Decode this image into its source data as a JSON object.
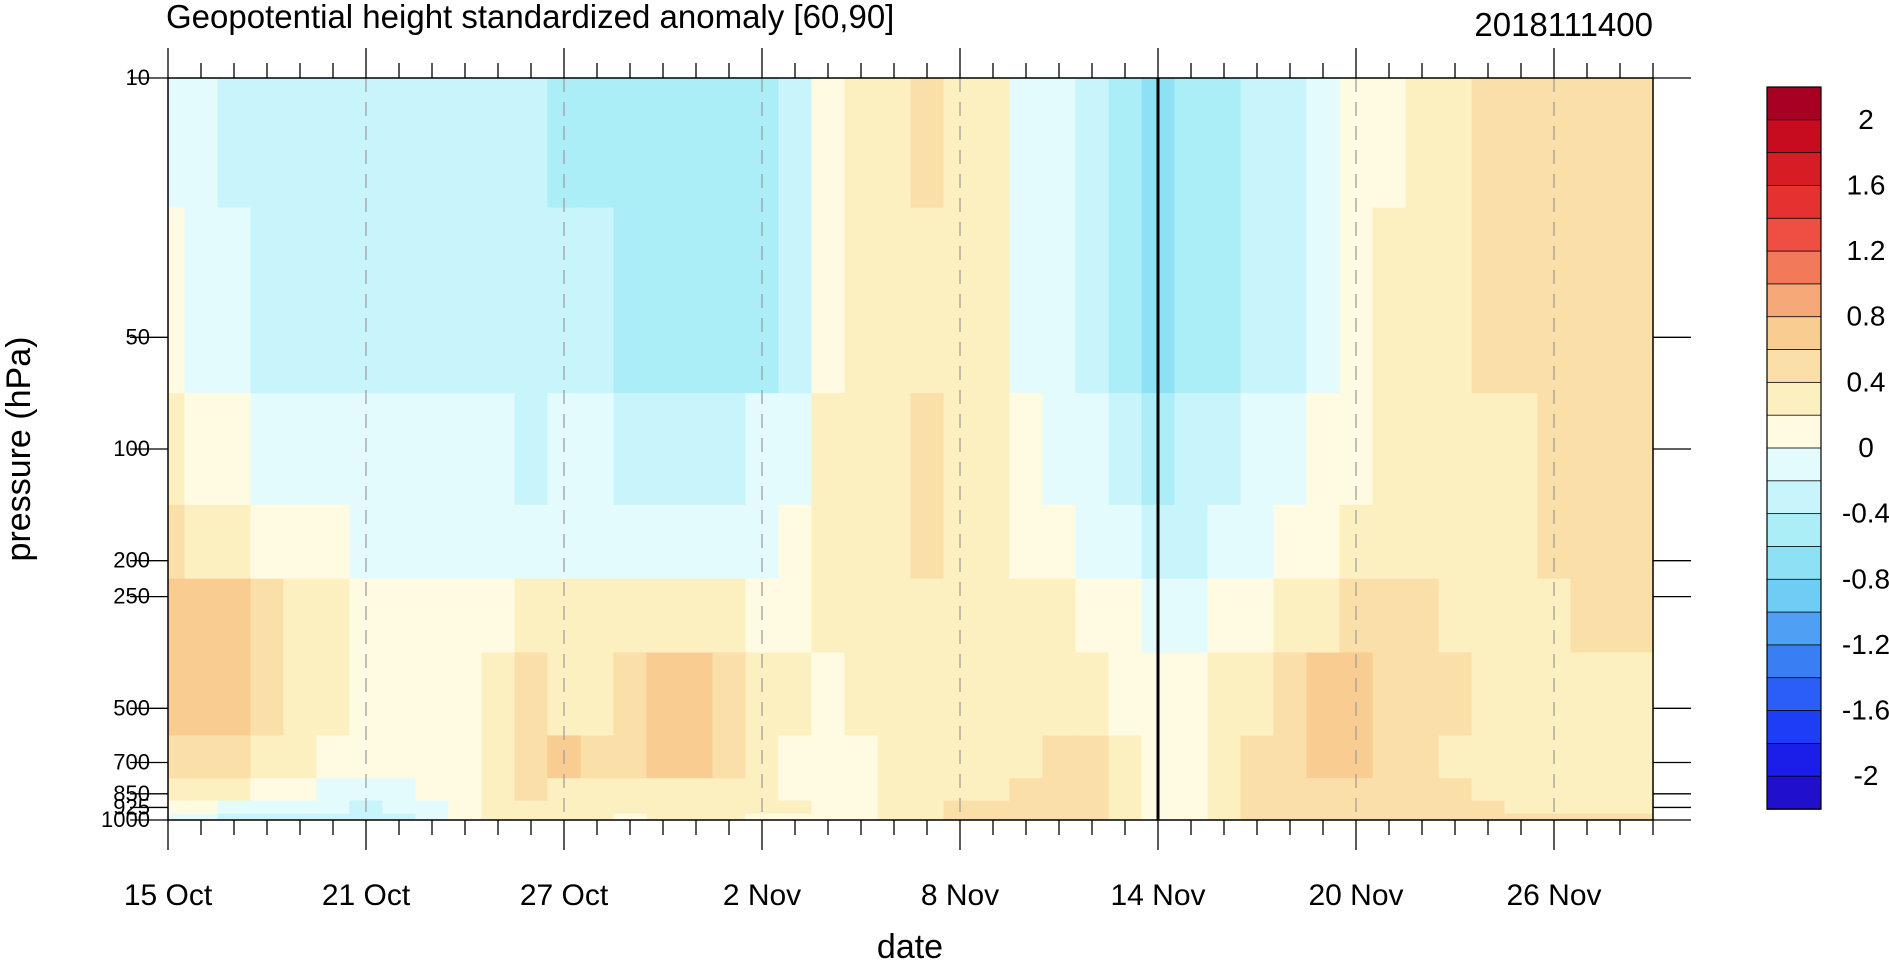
{
  "chart_data": {
    "type": "heatmap",
    "title": "Geopotential height standardized anomaly [60,90]",
    "date_label": "2018111400",
    "xlabel": "date",
    "ylabel": "pressure (hPa)",
    "x_ticks": [
      "15 Oct",
      "21 Oct",
      "27 Oct",
      "2 Nov",
      "8 Nov",
      "14 Nov",
      "20 Nov",
      "26 Nov"
    ],
    "x_range_days": [
      0,
      45
    ],
    "marked_date_day": 30,
    "y_ticks": [
      10,
      50,
      100,
      200,
      250,
      500,
      700,
      850,
      925,
      1000
    ],
    "y_tick_labels": [
      "10",
      "50",
      "100",
      "200",
      "250",
      "500",
      "700",
      "850",
      "925",
      "1000"
    ],
    "colorbar_levels": [
      -2.2,
      -2,
      -1.8,
      -1.6,
      -1.4,
      -1.2,
      -1,
      -0.8,
      -0.6,
      -0.4,
      -0.2,
      0,
      0.2,
      0.4,
      0.6,
      0.8,
      1,
      1.2,
      1.4,
      1.6,
      1.8,
      2,
      2.2
    ],
    "colorbar_colors": [
      "#2010cc",
      "#1a1ee8",
      "#1e3ef5",
      "#2b5ef6",
      "#3a7ef4",
      "#4fa0f4",
      "#6fccf5",
      "#8ee1f5",
      "#aceef8",
      "#c8f5fb",
      "#e4fbfd",
      "#fffbe2",
      "#fcefc0",
      "#fbdfa8",
      "#f9cd92",
      "#f6a878",
      "#f27a5a",
      "#ef4f42",
      "#e5312f",
      "#d81c25",
      "#c80c20",
      "#a80022"
    ],
    "colorbar_labels": [
      "2",
      "1.6",
      "1.2",
      "0.8",
      "0.4",
      "0",
      "-0.4",
      "-0.8",
      "-1.2",
      "-1.6",
      "-2"
    ],
    "grid_values": [
      [
        -0.2,
        -0.2,
        -0.3,
        -0.3,
        -0.3,
        -0.3,
        -0.3,
        -0.3,
        -0.4,
        -0.4,
        -0.4,
        -0.4,
        -0.5,
        -0.5,
        -0.6,
        -0.6,
        -0.6,
        -0.6,
        -0.5,
        -0.4,
        0.1,
        0.2,
        0.3,
        0.4,
        0.3,
        0.2,
        -0.1,
        -0.2,
        -0.3,
        -0.5,
        -0.7,
        -0.6,
        -0.5,
        -0.4,
        -0.3,
        -0.2,
        0.0,
        0.1,
        0.2,
        0.3,
        0.4,
        0.4,
        0.5,
        0.5,
        0.5,
        0.5
      ],
      [
        0.0,
        -0.1,
        -0.2,
        -0.3,
        -0.3,
        -0.3,
        -0.3,
        -0.4,
        -0.4,
        -0.3,
        -0.3,
        -0.4,
        -0.4,
        -0.4,
        -0.5,
        -0.6,
        -0.6,
        -0.5,
        -0.5,
        -0.3,
        0.1,
        0.2,
        0.3,
        0.3,
        0.3,
        0.2,
        -0.1,
        -0.2,
        -0.4,
        -0.5,
        -0.7,
        -0.6,
        -0.5,
        -0.4,
        -0.3,
        -0.1,
        0.1,
        0.2,
        0.3,
        0.3,
        0.4,
        0.4,
        0.4,
        0.5,
        0.5,
        0.5
      ],
      [
        0.2,
        0.1,
        0.0,
        -0.1,
        -0.1,
        -0.2,
        -0.2,
        -0.2,
        -0.2,
        -0.2,
        -0.2,
        -0.3,
        -0.2,
        -0.2,
        -0.3,
        -0.3,
        -0.3,
        -0.3,
        -0.2,
        -0.1,
        0.2,
        0.3,
        0.3,
        0.4,
        0.3,
        0.2,
        0.0,
        -0.1,
        -0.2,
        -0.4,
        -0.5,
        -0.4,
        -0.3,
        -0.2,
        -0.1,
        0.0,
        0.1,
        0.2,
        0.3,
        0.3,
        0.3,
        0.3,
        0.4,
        0.5,
        0.5,
        0.5
      ],
      [
        0.4,
        0.3,
        0.2,
        0.1,
        0.0,
        0.0,
        -0.1,
        -0.1,
        -0.1,
        -0.1,
        -0.1,
        -0.1,
        -0.1,
        -0.1,
        -0.1,
        -0.1,
        -0.1,
        -0.1,
        -0.1,
        0.0,
        0.2,
        0.3,
        0.3,
        0.4,
        0.3,
        0.2,
        0.1,
        0.0,
        -0.1,
        -0.2,
        -0.3,
        -0.3,
        -0.2,
        -0.1,
        0.0,
        0.1,
        0.2,
        0.2,
        0.3,
        0.3,
        0.3,
        0.3,
        0.4,
        0.4,
        0.5,
        0.5
      ],
      [
        0.7,
        0.6,
        0.6,
        0.5,
        0.3,
        0.2,
        0.1,
        0.1,
        0.1,
        0.1,
        0.1,
        0.2,
        0.3,
        0.3,
        0.3,
        0.3,
        0.3,
        0.2,
        0.1,
        0.1,
        0.2,
        0.3,
        0.3,
        0.3,
        0.3,
        0.3,
        0.2,
        0.2,
        0.1,
        0.0,
        -0.1,
        -0.1,
        0.0,
        0.1,
        0.2,
        0.3,
        0.4,
        0.4,
        0.4,
        0.3,
        0.3,
        0.3,
        0.3,
        0.4,
        0.4,
        0.5
      ],
      [
        0.7,
        0.7,
        0.6,
        0.5,
        0.3,
        0.2,
        0.1,
        0.1,
        0.1,
        0.1,
        0.3,
        0.4,
        0.3,
        0.3,
        0.4,
        0.6,
        0.6,
        0.4,
        0.3,
        0.2,
        0.1,
        0.2,
        0.3,
        0.3,
        0.3,
        0.3,
        0.3,
        0.2,
        0.2,
        0.1,
        0.0,
        0.0,
        0.2,
        0.3,
        0.5,
        0.6,
        0.6,
        0.5,
        0.4,
        0.4,
        0.3,
        0.3,
        0.3,
        0.3,
        0.3,
        0.3
      ],
      [
        0.5,
        0.5,
        0.5,
        0.3,
        0.2,
        0.1,
        0.1,
        0.1,
        0.1,
        0.1,
        0.3,
        0.4,
        0.6,
        0.4,
        0.4,
        0.6,
        0.6,
        0.4,
        0.3,
        0.1,
        0.1,
        0.1,
        0.2,
        0.3,
        0.3,
        0.3,
        0.3,
        0.4,
        0.4,
        0.2,
        0.0,
        0.1,
        0.3,
        0.4,
        0.5,
        0.6,
        0.6,
        0.5,
        0.4,
        0.3,
        0.3,
        0.3,
        0.3,
        0.3,
        0.3,
        0.3
      ],
      [
        0.3,
        0.3,
        0.2,
        0.1,
        0.0,
        -0.1,
        -0.2,
        -0.1,
        0.0,
        0.1,
        0.3,
        0.4,
        0.3,
        0.3,
        0.3,
        0.3,
        0.3,
        0.3,
        0.3,
        0.1,
        0.1,
        0.1,
        0.2,
        0.3,
        0.3,
        0.3,
        0.4,
        0.5,
        0.5,
        0.3,
        0.0,
        0.1,
        0.3,
        0.4,
        0.5,
        0.5,
        0.5,
        0.5,
        0.4,
        0.4,
        0.3,
        0.3,
        0.3,
        0.3,
        0.3,
        0.3
      ],
      [
        0.1,
        0.0,
        -0.1,
        -0.2,
        -0.2,
        -0.2,
        -0.3,
        -0.2,
        -0.1,
        0.0,
        0.2,
        0.3,
        0.3,
        0.2,
        0.3,
        0.3,
        0.3,
        0.3,
        0.3,
        0.2,
        0.1,
        0.1,
        0.2,
        0.3,
        0.4,
        0.4,
        0.4,
        0.5,
        0.5,
        0.3,
        0.0,
        0.1,
        0.3,
        0.4,
        0.5,
        0.5,
        0.5,
        0.5,
        0.5,
        0.4,
        0.4,
        0.3,
        0.3,
        0.3,
        0.3,
        0.3
      ],
      [
        -0.1,
        -0.2,
        -0.3,
        -0.3,
        -0.4,
        -0.3,
        -0.3,
        -0.3,
        -0.1,
        0.0,
        0.2,
        0.3,
        0.3,
        0.2,
        0.1,
        0.2,
        0.3,
        0.2,
        0.1,
        0.1,
        0.0,
        0.1,
        0.2,
        0.3,
        0.4,
        0.4,
        0.5,
        0.5,
        0.4,
        0.3,
        0.0,
        0.1,
        0.3,
        0.4,
        0.5,
        0.5,
        0.5,
        0.5,
        0.5,
        0.5,
        0.5,
        0.5,
        0.4,
        0.4,
        0.4,
        0.4
      ]
    ]
  }
}
